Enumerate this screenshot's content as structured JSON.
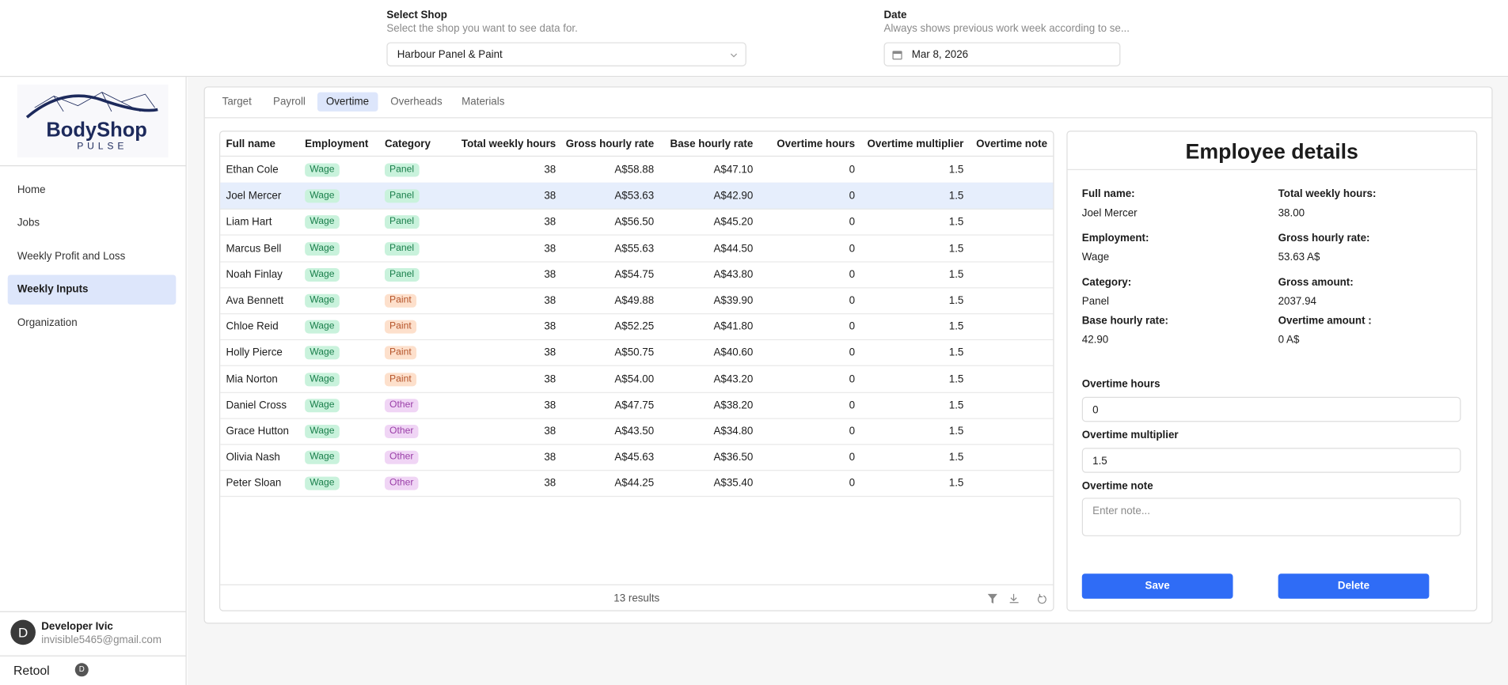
{
  "header": {
    "shop_label": "Select Shop",
    "shop_hint": "Select the shop you want to see data for.",
    "shop_value": "Harbour Panel & Paint",
    "date_label": "Date",
    "date_hint": "Always shows previous work week according to se...",
    "date_value": "Mar 8, 2026"
  },
  "logo": {
    "title": "BodyShop",
    "subtitle": "PULSE"
  },
  "nav": [
    "Home",
    "Jobs",
    "Weekly Profit and Loss",
    "Weekly Inputs",
    "Organization"
  ],
  "user": {
    "initial": "D",
    "name": "Developer Ivic",
    "email": "invisible5465@gmail.com",
    "brand": "Retool",
    "badge": "D"
  },
  "tabs": [
    "Target",
    "Payroll",
    "Overtime",
    "Overheads",
    "Materials"
  ],
  "table": {
    "columns": [
      "Full name",
      "Employment",
      "Category",
      "Total weekly hours",
      "Gross hourly rate",
      "Base hourly rate",
      "Overtime hours",
      "Overtime multiplier",
      "Overtime note"
    ],
    "rows": [
      [
        "Ethan Cole",
        "Wage",
        "Panel",
        "38",
        "A$58.88",
        "A$47.10",
        "0",
        "1.5"
      ],
      [
        "Joel Mercer",
        "Wage",
        "Panel",
        "38",
        "A$53.63",
        "A$42.90",
        "0",
        "1.5"
      ],
      [
        "Liam Hart",
        "Wage",
        "Panel",
        "38",
        "A$56.50",
        "A$45.20",
        "0",
        "1.5"
      ],
      [
        "Marcus Bell",
        "Wage",
        "Panel",
        "38",
        "A$55.63",
        "A$44.50",
        "0",
        "1.5"
      ],
      [
        "Noah Finlay",
        "Wage",
        "Panel",
        "38",
        "A$54.75",
        "A$43.80",
        "0",
        "1.5"
      ],
      [
        "Ava Bennett",
        "Wage",
        "Paint",
        "38",
        "A$49.88",
        "A$39.90",
        "0",
        "1.5"
      ],
      [
        "Chloe Reid",
        "Wage",
        "Paint",
        "38",
        "A$52.25",
        "A$41.80",
        "0",
        "1.5"
      ],
      [
        "Holly Pierce",
        "Wage",
        "Paint",
        "38",
        "A$50.75",
        "A$40.60",
        "0",
        "1.5"
      ],
      [
        "Mia Norton",
        "Wage",
        "Paint",
        "38",
        "A$54.00",
        "A$43.20",
        "0",
        "1.5"
      ],
      [
        "Daniel Cross",
        "Wage",
        "Other",
        "38",
        "A$47.75",
        "A$38.20",
        "0",
        "1.5"
      ],
      [
        "Grace Hutton",
        "Wage",
        "Other",
        "38",
        "A$43.50",
        "A$34.80",
        "0",
        "1.5"
      ],
      [
        "Olivia Nash",
        "Wage",
        "Other",
        "38",
        "A$45.63",
        "A$36.50",
        "0",
        "1.5"
      ],
      [
        "Peter Sloan",
        "Wage",
        "Other",
        "38",
        "A$44.25",
        "A$35.40",
        "0",
        "1.5"
      ]
    ],
    "footer": "13 results"
  },
  "details": {
    "title": "Employee details",
    "fields": [
      [
        "Full name:",
        "Joel Mercer"
      ],
      [
        "Total weekly hours:",
        "38.00"
      ],
      [
        "Employment:",
        "Wage"
      ],
      [
        "Gross hourly rate:",
        "53.63 A$"
      ],
      [
        "Category:",
        "Panel"
      ],
      [
        "Gross amount:",
        "2037.94"
      ],
      [
        "Base hourly rate:",
        "42.90"
      ],
      [
        "Overtime amount :",
        "0 A$"
      ]
    ],
    "overtime_hours_label": "Overtime hours",
    "overtime_hours": "0",
    "multiplier_label": "Overtime multiplier",
    "multiplier": "1.5",
    "note_label": "Overtime note",
    "note_placeholder": "Enter note...",
    "save": "Save",
    "delete": "Delete"
  }
}
